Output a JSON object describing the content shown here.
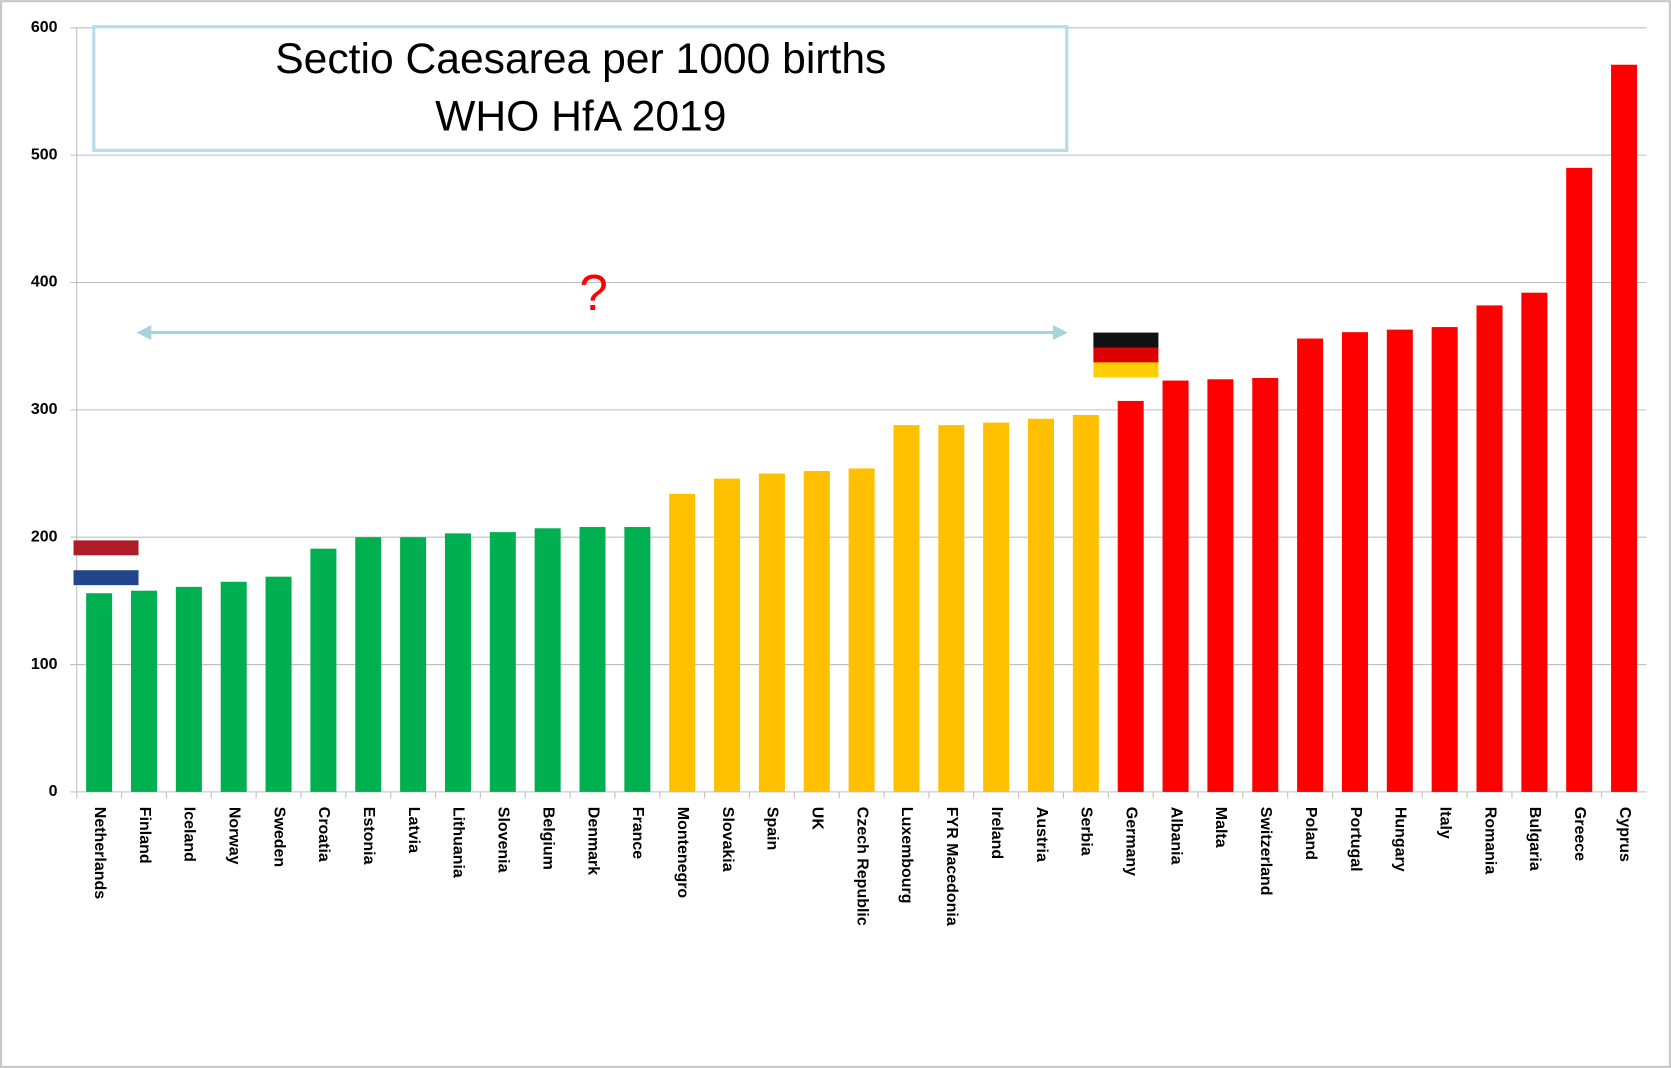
{
  "chart_data": {
    "type": "bar",
    "title": "Sectio Caesarea per 1000 births",
    "subtitle": "WHO HfA 2019",
    "annotation": "?",
    "categories": [
      "Netherlands",
      "Finland",
      "Iceland",
      "Norway",
      "Sweden",
      "Croatia",
      "Estonia",
      "Latvia",
      "Lithuania",
      "Slovenia",
      "Belgium",
      "Denmark",
      "France",
      "Montenegro",
      "Slovakia",
      "Spain",
      "UK",
      "Czech Republic",
      "Luxembourg",
      "FYR Macedonia",
      "Ireland",
      "Austria",
      "Serbia",
      "Germany",
      "Albania",
      "Malta",
      "Switzerland",
      "Poland",
      "Portugal",
      "Hungary",
      "Italy",
      "Romania",
      "Bulgaria",
      "Greece",
      "Cyprus"
    ],
    "values": [
      156,
      158,
      161,
      165,
      169,
      191,
      200,
      200,
      203,
      204,
      207,
      208,
      208,
      234,
      246,
      250,
      252,
      254,
      288,
      288,
      290,
      293,
      296,
      307,
      323,
      324,
      325,
      356,
      361,
      363,
      365,
      382,
      392,
      490,
      571
    ],
    "colors": [
      "#00b050",
      "#00b050",
      "#00b050",
      "#00b050",
      "#00b050",
      "#00b050",
      "#00b050",
      "#00b050",
      "#00b050",
      "#00b050",
      "#00b050",
      "#00b050",
      "#00b050",
      "#ffc000",
      "#ffc000",
      "#ffc000",
      "#ffc000",
      "#ffc000",
      "#ffc000",
      "#ffc000",
      "#ffc000",
      "#ffc000",
      "#ffc000",
      "#ff0000",
      "#ff0000",
      "#ff0000",
      "#ff0000",
      "#ff0000",
      "#ff0000",
      "#ff0000",
      "#ff0000",
      "#ff0000",
      "#ff0000",
      "#ff0000",
      "#ff0000"
    ],
    "ylim": [
      0,
      600
    ],
    "yticks": [
      0,
      100,
      200,
      300,
      400,
      500,
      600
    ],
    "grid": true
  }
}
